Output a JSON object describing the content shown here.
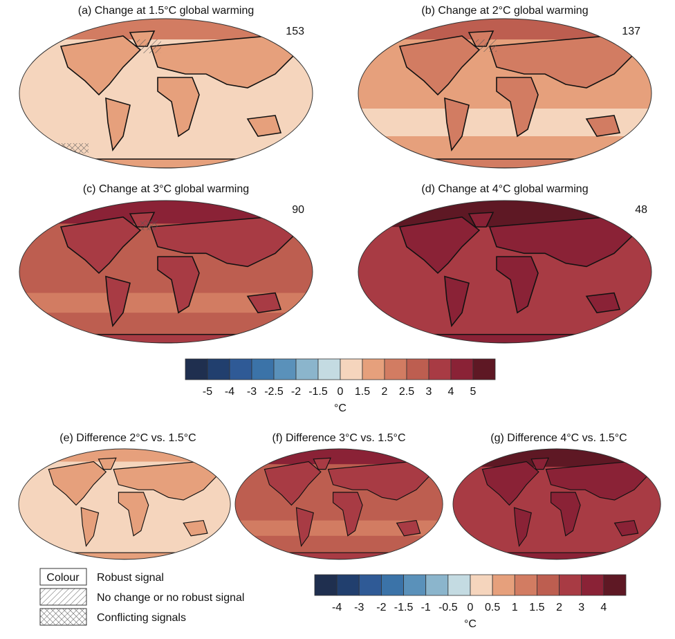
{
  "panels": [
    {
      "title": "(a) Change at 1.5°C global warming",
      "count": 153
    },
    {
      "title": "(b) Change at 2°C global warming",
      "count": 137
    },
    {
      "title": "(c) Change at 3°C global warming",
      "count": 90
    },
    {
      "title": "(d) Change at 4°C global warming",
      "count": 48
    }
  ],
  "difference_panels": [
    {
      "title": "(e) Difference 2°C vs. 1.5°C"
    },
    {
      "title": "(f) Difference 3°C vs. 1.5°C"
    },
    {
      "title": "(g) Difference 4°C vs. 1.5°C"
    }
  ],
  "colorbar_change": {
    "ticks": [
      -5,
      -4,
      -3,
      -2.5,
      -2,
      -1.5,
      0,
      1.5,
      2,
      2.5,
      3,
      4,
      5
    ],
    "unit": "°C",
    "colors": [
      "#1f2f4f",
      "#213f6e",
      "#2f5a96",
      "#3b73a8",
      "#5a91ba",
      "#8bb5cc",
      "#c4dbe2",
      "#f5d5bd",
      "#e6a07c",
      "#d27c62",
      "#bd5e50",
      "#a83b44",
      "#8a2236",
      "#5e1824"
    ]
  },
  "colorbar_difference": {
    "ticks": [
      -4,
      -3,
      -2,
      -1.5,
      -1,
      -0.5,
      0,
      0.5,
      1,
      1.5,
      2,
      3,
      4
    ],
    "unit": "°C",
    "colors": [
      "#1f2f4f",
      "#213f6e",
      "#2f5a96",
      "#3b73a8",
      "#5a91ba",
      "#8bb5cc",
      "#c4dbe2",
      "#f5d5bd",
      "#e6a07c",
      "#d27c62",
      "#bd5e50",
      "#a83b44",
      "#8a2236",
      "#5e1824"
    ]
  },
  "legend": {
    "swatch": "Colour",
    "items": [
      "Robust signal",
      "No change or no robust signal",
      "Conflicting signals"
    ]
  }
}
